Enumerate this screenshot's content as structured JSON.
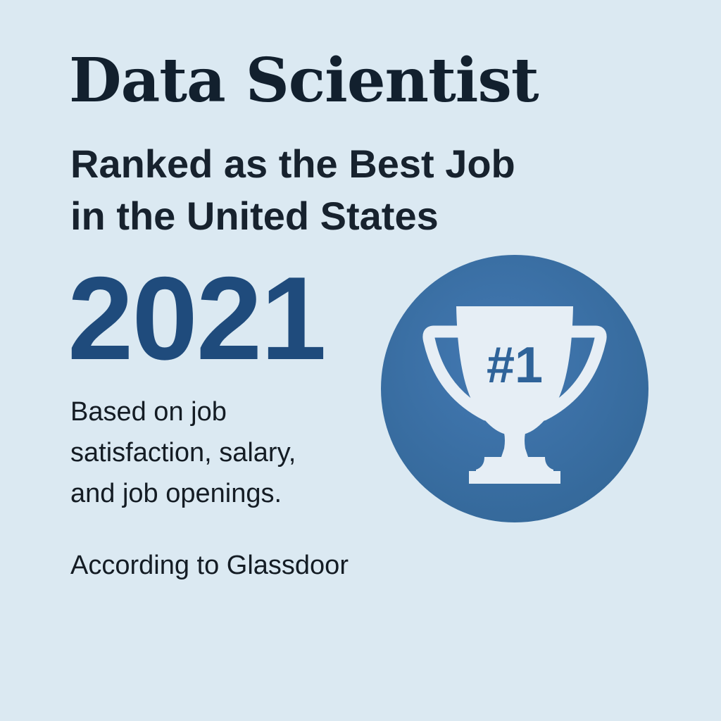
{
  "headline": {
    "title": "Data Scientist",
    "subtitle_line1": "Ranked as the Best Job",
    "subtitle_line2": "in the United States",
    "year": "2021"
  },
  "basis": {
    "line1": "Based on job",
    "line2": "satisfaction, salary,",
    "line3": "and job openings."
  },
  "source": "According to Glassdoor",
  "badge": {
    "rank_text": "#1",
    "icon": "trophy-icon"
  },
  "colors": {
    "background": "#dbe9f2",
    "accent": "#3a6ea6",
    "year": "#1f4b7c",
    "trophy": "#e6eef5"
  }
}
